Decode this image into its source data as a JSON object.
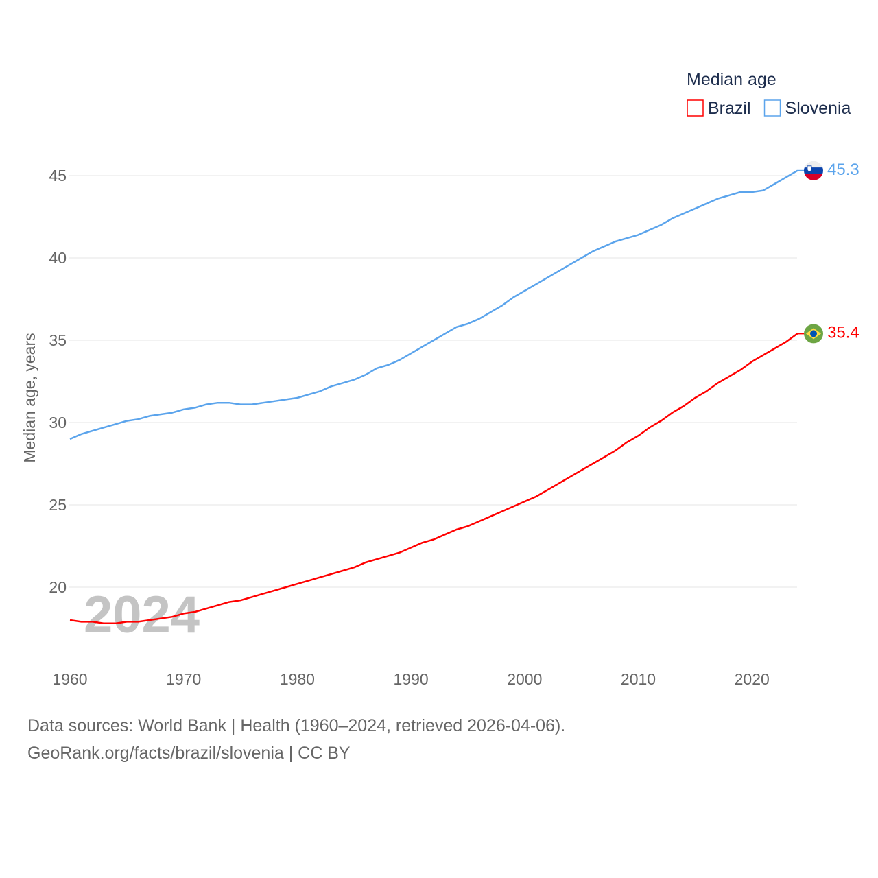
{
  "chart_data": {
    "type": "line",
    "title": "",
    "ylabel": "Median age, years",
    "xlabel": "",
    "xlim": [
      1960,
      2024
    ],
    "ylim": [
      15,
      47
    ],
    "yticks": [
      20,
      25,
      30,
      35,
      40,
      45
    ],
    "xticks": [
      1960,
      1970,
      1980,
      1990,
      2000,
      2010,
      2020
    ],
    "grid": true,
    "legend": {
      "title": "Median age",
      "placement": "top-right"
    },
    "watermark_year": "2024",
    "x": [
      1960,
      1961,
      1962,
      1963,
      1964,
      1965,
      1966,
      1967,
      1968,
      1969,
      1970,
      1971,
      1972,
      1973,
      1974,
      1975,
      1976,
      1977,
      1978,
      1979,
      1980,
      1981,
      1982,
      1983,
      1984,
      1985,
      1986,
      1987,
      1988,
      1989,
      1990,
      1991,
      1992,
      1993,
      1994,
      1995,
      1996,
      1997,
      1998,
      1999,
      2000,
      2001,
      2002,
      2003,
      2004,
      2005,
      2006,
      2007,
      2008,
      2009,
      2010,
      2011,
      2012,
      2013,
      2014,
      2015,
      2016,
      2017,
      2018,
      2019,
      2020,
      2021,
      2022,
      2023,
      2024
    ],
    "series": [
      {
        "name": "Brazil",
        "color": "#ff0000",
        "end_label": "35.4",
        "flag": "brazil-flag",
        "values": [
          18.0,
          17.9,
          17.9,
          17.8,
          17.8,
          17.9,
          17.9,
          18.0,
          18.1,
          18.2,
          18.4,
          18.5,
          18.7,
          18.9,
          19.1,
          19.2,
          19.4,
          19.6,
          19.8,
          20.0,
          20.2,
          20.4,
          20.6,
          20.8,
          21.0,
          21.2,
          21.5,
          21.7,
          21.9,
          22.1,
          22.4,
          22.7,
          22.9,
          23.2,
          23.5,
          23.7,
          24.0,
          24.3,
          24.6,
          24.9,
          25.2,
          25.5,
          25.9,
          26.3,
          26.7,
          27.1,
          27.5,
          27.9,
          28.3,
          28.8,
          29.2,
          29.7,
          30.1,
          30.6,
          31.0,
          31.5,
          31.9,
          32.4,
          32.8,
          33.2,
          33.7,
          34.1,
          34.5,
          34.9,
          35.4
        ]
      },
      {
        "name": "Slovenia",
        "color": "#5ba4ec",
        "end_label": "45.3",
        "flag": "slovenia-flag",
        "values": [
          29.0,
          29.3,
          29.5,
          29.7,
          29.9,
          30.1,
          30.2,
          30.4,
          30.5,
          30.6,
          30.8,
          30.9,
          31.1,
          31.2,
          31.2,
          31.1,
          31.1,
          31.2,
          31.3,
          31.4,
          31.5,
          31.7,
          31.9,
          32.2,
          32.4,
          32.6,
          32.9,
          33.3,
          33.5,
          33.8,
          34.2,
          34.6,
          35.0,
          35.4,
          35.8,
          36.0,
          36.3,
          36.7,
          37.1,
          37.6,
          38.0,
          38.4,
          38.8,
          39.2,
          39.6,
          40.0,
          40.4,
          40.7,
          41.0,
          41.2,
          41.4,
          41.7,
          42.0,
          42.4,
          42.7,
          43.0,
          43.3,
          43.6,
          43.8,
          44.0,
          44.0,
          44.1,
          44.5,
          44.9,
          45.3
        ]
      }
    ]
  },
  "footer": {
    "line1": "Data sources: World Bank | Health (1960–2024, retrieved 2026-04-06).",
    "line2": "GeoRank.org/facts/brazil/slovenia | CC BY"
  }
}
